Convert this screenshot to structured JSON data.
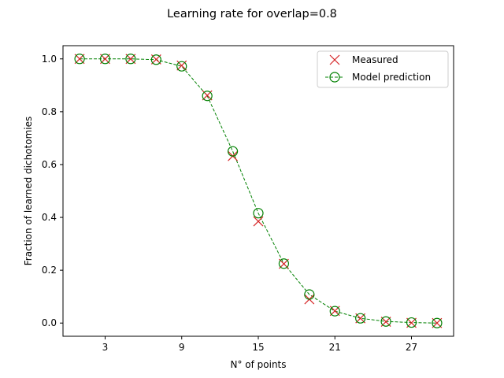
{
  "chart_data": {
    "type": "line",
    "title": "Learning rate for overlap=0.8",
    "xlabel": "N° of points",
    "ylabel": "Fraction of learned dichotomies",
    "xlim": [
      -0.3,
      30.3
    ],
    "ylim": [
      -0.05,
      1.05
    ],
    "xticks": [
      3,
      9,
      15,
      21,
      27
    ],
    "yticks": [
      "0.0",
      "0.2",
      "0.4",
      "0.6",
      "0.8",
      "1.0"
    ],
    "ytick_values": [
      0.0,
      0.2,
      0.4,
      0.6,
      0.8,
      1.0
    ],
    "x": [
      1,
      3,
      5,
      7,
      9,
      11,
      13,
      15,
      17,
      19,
      21,
      23,
      25,
      27,
      29
    ],
    "series": [
      {
        "name": "Measured",
        "marker": "x",
        "color": "#d62728",
        "line": "none",
        "values": [
          1.0,
          1.0,
          1.0,
          0.998,
          0.975,
          0.862,
          0.632,
          0.385,
          0.224,
          0.09,
          0.046,
          0.018,
          0.005,
          0.001,
          0.0
        ]
      },
      {
        "name": "Model prediction",
        "marker": "o",
        "color": "#008000",
        "line": "dashed",
        "values": [
          1.0,
          1.0,
          1.0,
          0.997,
          0.972,
          0.86,
          0.65,
          0.416,
          0.225,
          0.108,
          0.045,
          0.018,
          0.006,
          0.002,
          0.0
        ]
      }
    ],
    "grid": false,
    "legend": "top-right"
  }
}
